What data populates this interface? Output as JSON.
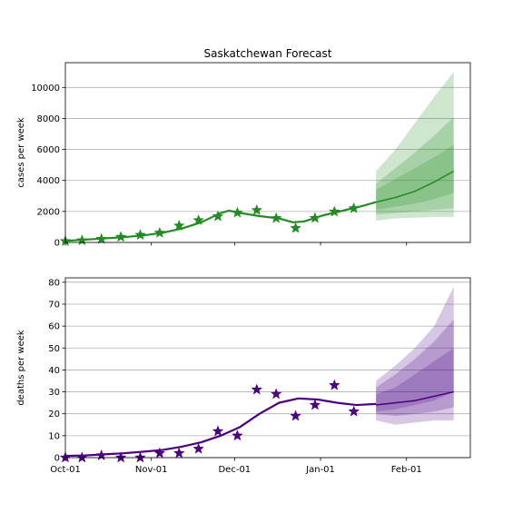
{
  "chart_data": [
    {
      "type": "line",
      "title": "Saskatchewan Forecast",
      "xlabel": "",
      "ylabel": "cases per week",
      "ylim": [
        0,
        11600
      ],
      "yticks": [
        0,
        2000,
        4000,
        6000,
        8000,
        10000
      ],
      "xticks": [
        "Oct-01",
        "Nov-01",
        "Dec-01",
        "Jan-01",
        "Feb-01"
      ],
      "x_tick_labels_shown": false,
      "grid": "horizontal",
      "color": "#228b22",
      "model_series": {
        "x": [
          "2020-10-01",
          "2020-10-08",
          "2020-10-15",
          "2020-10-22",
          "2020-10-29",
          "2020-11-05",
          "2020-11-12",
          "2020-11-19",
          "2020-11-26",
          "2020-11-29",
          "2020-12-03",
          "2020-12-10",
          "2020-12-17",
          "2020-12-22",
          "2020-12-26",
          "2021-01-02",
          "2021-01-09",
          "2021-01-16",
          "2021-01-21"
        ],
        "y": [
          100,
          180,
          260,
          340,
          450,
          620,
          900,
          1300,
          1900,
          2050,
          1900,
          1700,
          1550,
          1300,
          1350,
          1750,
          2050,
          2350,
          2600
        ]
      },
      "observed": {
        "x": [
          "2020-10-01",
          "2020-10-07",
          "2020-10-14",
          "2020-10-21",
          "2020-10-28",
          "2020-11-04",
          "2020-11-11",
          "2020-11-18",
          "2020-11-25",
          "2020-12-02",
          "2020-12-09",
          "2020-12-16",
          "2020-12-23",
          "2020-12-30",
          "2021-01-06",
          "2021-01-13"
        ],
        "y": [
          80,
          130,
          220,
          350,
          480,
          620,
          1080,
          1430,
          1680,
          1920,
          2080,
          1560,
          920,
          1570,
          1980,
          2200
        ]
      },
      "forecast": {
        "x": [
          "2021-01-21",
          "2021-01-28",
          "2021-02-04",
          "2021-02-11",
          "2021-02-18"
        ],
        "median": [
          2600,
          2900,
          3300,
          3900,
          4600
        ],
        "bands": [
          {
            "lower": [
              2100,
              2300,
              2500,
              2800,
              3200
            ],
            "upper": [
              3400,
              4100,
              4800,
              5500,
              6300
            ]
          },
          {
            "lower": [
              1800,
              1900,
              2000,
              2100,
              2200
            ],
            "upper": [
              3800,
              4800,
              5800,
              6900,
              8100
            ]
          },
          {
            "lower": [
              1400,
              1550,
              1600,
              1650,
              1650
            ],
            "upper": [
              4600,
              6000,
              7700,
              9400,
              11000
            ]
          }
        ]
      }
    },
    {
      "type": "line",
      "title": "",
      "xlabel": "",
      "ylabel": "deaths per week",
      "ylim": [
        0,
        82
      ],
      "yticks": [
        0,
        10,
        20,
        30,
        40,
        50,
        60,
        70,
        80
      ],
      "xticks": [
        "Oct-01",
        "Nov-01",
        "Dec-01",
        "Jan-01",
        "Feb-01"
      ],
      "x_tick_labels_shown": true,
      "grid": "horizontal",
      "color": "#4b0082",
      "model_series": {
        "x": [
          "2020-10-01",
          "2020-10-08",
          "2020-10-15",
          "2020-10-22",
          "2020-10-29",
          "2020-11-05",
          "2020-11-12",
          "2020-11-19",
          "2020-11-26",
          "2020-12-03",
          "2020-12-10",
          "2020-12-17",
          "2020-12-24",
          "2020-12-31",
          "2021-01-07",
          "2021-01-14",
          "2021-01-21"
        ],
        "y": [
          0.8,
          1.0,
          1.5,
          2.0,
          2.7,
          3.5,
          5.0,
          7.0,
          10.0,
          14.0,
          20.0,
          25.0,
          27.0,
          26.5,
          25.0,
          24.0,
          24.5
        ]
      },
      "observed": {
        "x": [
          "2020-10-01",
          "2020-10-07",
          "2020-10-14",
          "2020-10-21",
          "2020-10-28",
          "2020-11-04",
          "2020-11-11",
          "2020-11-18",
          "2020-11-25",
          "2020-12-02",
          "2020-12-09",
          "2020-12-16",
          "2020-12-23",
          "2020-12-30",
          "2021-01-06",
          "2021-01-13"
        ],
        "y": [
          0,
          0,
          1,
          0,
          0,
          2,
          2,
          4,
          12,
          10,
          31,
          29,
          19,
          24,
          33,
          21
        ]
      },
      "forecast": {
        "x": [
          "2021-01-21",
          "2021-01-28",
          "2021-02-04",
          "2021-02-11",
          "2021-02-18"
        ],
        "median": [
          24,
          25,
          26,
          28,
          30
        ],
        "bands": [
          {
            "lower": [
              21,
              22,
              24,
              26,
              30
            ],
            "upper": [
              29,
              32,
              38,
              44,
              50
            ]
          },
          {
            "lower": [
              20,
              19,
              20,
              21,
              23
            ],
            "upper": [
              32,
              38,
              45,
              53,
              63
            ]
          },
          {
            "lower": [
              17,
              15,
              16,
              17,
              17
            ],
            "upper": [
              35,
              42,
              50,
              60,
              78
            ]
          }
        ]
      }
    }
  ]
}
